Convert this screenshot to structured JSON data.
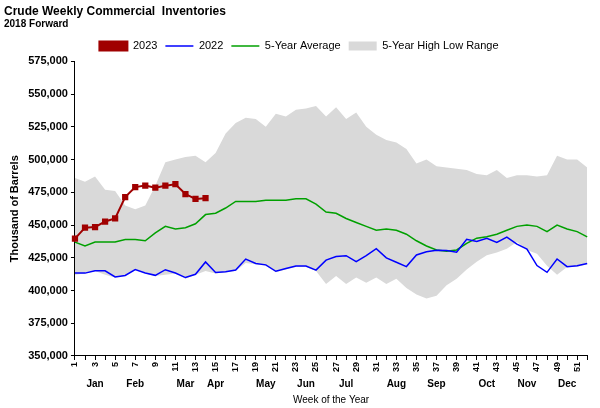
{
  "chart_data": {
    "type": "line",
    "title": "Crude Weekly Commercial  Inventories",
    "subtitle": "2018 Forward",
    "x_label": "Week of the Year",
    "y_label": "Thousand of Barrels",
    "categories": [
      "1",
      null,
      "3",
      null,
      "5",
      null,
      "7",
      null,
      "9",
      null,
      "11",
      null,
      "13",
      null,
      "15",
      null,
      "17",
      null,
      "19",
      null,
      "21",
      null,
      "23",
      null,
      "25",
      null,
      "27",
      null,
      "29",
      null,
      "31",
      null,
      "33",
      null,
      "35",
      null,
      "37",
      null,
      "39",
      null,
      "41",
      null,
      "43",
      null,
      "45",
      null,
      "47",
      null,
      "49",
      null,
      "51",
      null
    ],
    "annotations": [
      {
        "week": 3,
        "text": "Jan"
      },
      {
        "week": 7,
        "text": "Feb"
      },
      {
        "week": 12,
        "text": "Mar"
      },
      {
        "week": 15,
        "text": "Apr"
      },
      {
        "week": 20,
        "text": "May"
      },
      {
        "week": 24,
        "text": "Jun"
      },
      {
        "week": 28,
        "text": "Jul"
      },
      {
        "week": 33,
        "text": "Aug"
      },
      {
        "week": 37,
        "text": "Sep"
      },
      {
        "week": 42,
        "text": "Oct"
      },
      {
        "week": 46,
        "text": "Nov"
      },
      {
        "week": 50,
        "text": "Dec"
      }
    ],
    "series": [
      {
        "name": "5-Year High Low Range",
        "type": "range",
        "color": "#d9d9d9",
        "high": [
          486000,
          483000,
          487000,
          477000,
          476000,
          465000,
          462000,
          465000,
          480000,
          498000,
          500000,
          502000,
          503000,
          498000,
          505000,
          520000,
          528000,
          532000,
          531000,
          525000,
          535000,
          533000,
          538000,
          539000,
          541000,
          533000,
          540000,
          531000,
          536000,
          525000,
          519000,
          515000,
          513000,
          508000,
          497000,
          500000,
          495000,
          494000,
          493000,
          492000,
          489000,
          488000,
          492000,
          486000,
          488000,
          488000,
          487000,
          488000,
          503000,
          500000,
          500000,
          494000
        ],
        "low": [
          412000,
          413000,
          415000,
          412000,
          410000,
          411000,
          416000,
          413000,
          411000,
          412000,
          413000,
          409000,
          412000,
          415000,
          413000,
          414000,
          415000,
          421000,
          420000,
          419000,
          414000,
          416000,
          418000,
          418000,
          415000,
          405000,
          411000,
          405000,
          410000,
          406000,
          410000,
          405000,
          409000,
          402000,
          397000,
          394000,
          396000,
          404000,
          409000,
          416000,
          422000,
          427000,
          429000,
          432000,
          437000,
          431000,
          428000,
          419000,
          412000,
          418000,
          418000,
          420000
        ]
      },
      {
        "name": "5-Year Average",
        "color": "#00a000",
        "values": [
          437000,
          434000,
          437000,
          437000,
          437000,
          439000,
          439000,
          438000,
          444000,
          449000,
          447000,
          448000,
          451000,
          458000,
          459000,
          463000,
          468000,
          468000,
          468000,
          469000,
          469000,
          469000,
          470000,
          470000,
          466000,
          460000,
          459000,
          455000,
          452000,
          449000,
          446000,
          447000,
          446000,
          443000,
          438000,
          434000,
          431000,
          430000,
          431000,
          436000,
          440000,
          441000,
          443000,
          446000,
          449000,
          450000,
          449000,
          445000,
          450000,
          447000,
          445000,
          441000
        ]
      },
      {
        "name": "2023",
        "color": "#a00000",
        "marker": "square",
        "values": [
          439600,
          448000,
          448500,
          452700,
          455100,
          471400,
          479000,
          480200,
          478500,
          480100,
          481200,
          473700,
          470000,
          470500,
          null,
          null,
          null,
          null,
          null,
          null,
          null,
          null,
          null,
          null,
          null,
          null,
          null,
          null,
          null,
          null,
          null,
          null,
          null,
          null,
          null,
          null,
          null,
          null,
          null,
          null,
          null,
          null,
          null,
          null,
          null,
          null,
          null,
          null,
          null,
          null,
          null,
          null
        ]
      },
      {
        "name": "2022",
        "color": "#0000ff",
        "values": [
          413300,
          413300,
          415100,
          415100,
          410400,
          411500,
          416000,
          413400,
          411600,
          415900,
          413400,
          409900,
          412400,
          421800,
          413700,
          414400,
          415700,
          424000,
          420600,
          419600,
          414700,
          416800,
          418700,
          418700,
          415600,
          423200,
          426000,
          426600,
          422100,
          426600,
          432000,
          424900,
          421600,
          418300,
          427200,
          429600,
          430800,
          430600,
          429200,
          439100,
          437400,
          439900,
          436800,
          440800,
          435400,
          431700,
          419100,
          413900,
          424100,
          418200,
          418900,
          420600
        ]
      }
    ],
    "ylim": [
      350000,
      575000
    ],
    "yticks": [
      {
        "value": 350000,
        "label": "350,000"
      },
      {
        "value": 375000,
        "label": "375,000"
      },
      {
        "value": 400000,
        "label": "400,000"
      },
      {
        "value": 425000,
        "label": "425,000"
      },
      {
        "value": 450000,
        "label": "450,000"
      },
      {
        "value": 475000,
        "label": "475,000"
      },
      {
        "value": 500000,
        "label": "500,000"
      },
      {
        "value": 525000,
        "label": "525,000"
      },
      {
        "value": 550000,
        "label": "550,000"
      },
      {
        "value": 575000,
        "label": "575,000"
      }
    ],
    "grid": false,
    "legend": "top"
  }
}
